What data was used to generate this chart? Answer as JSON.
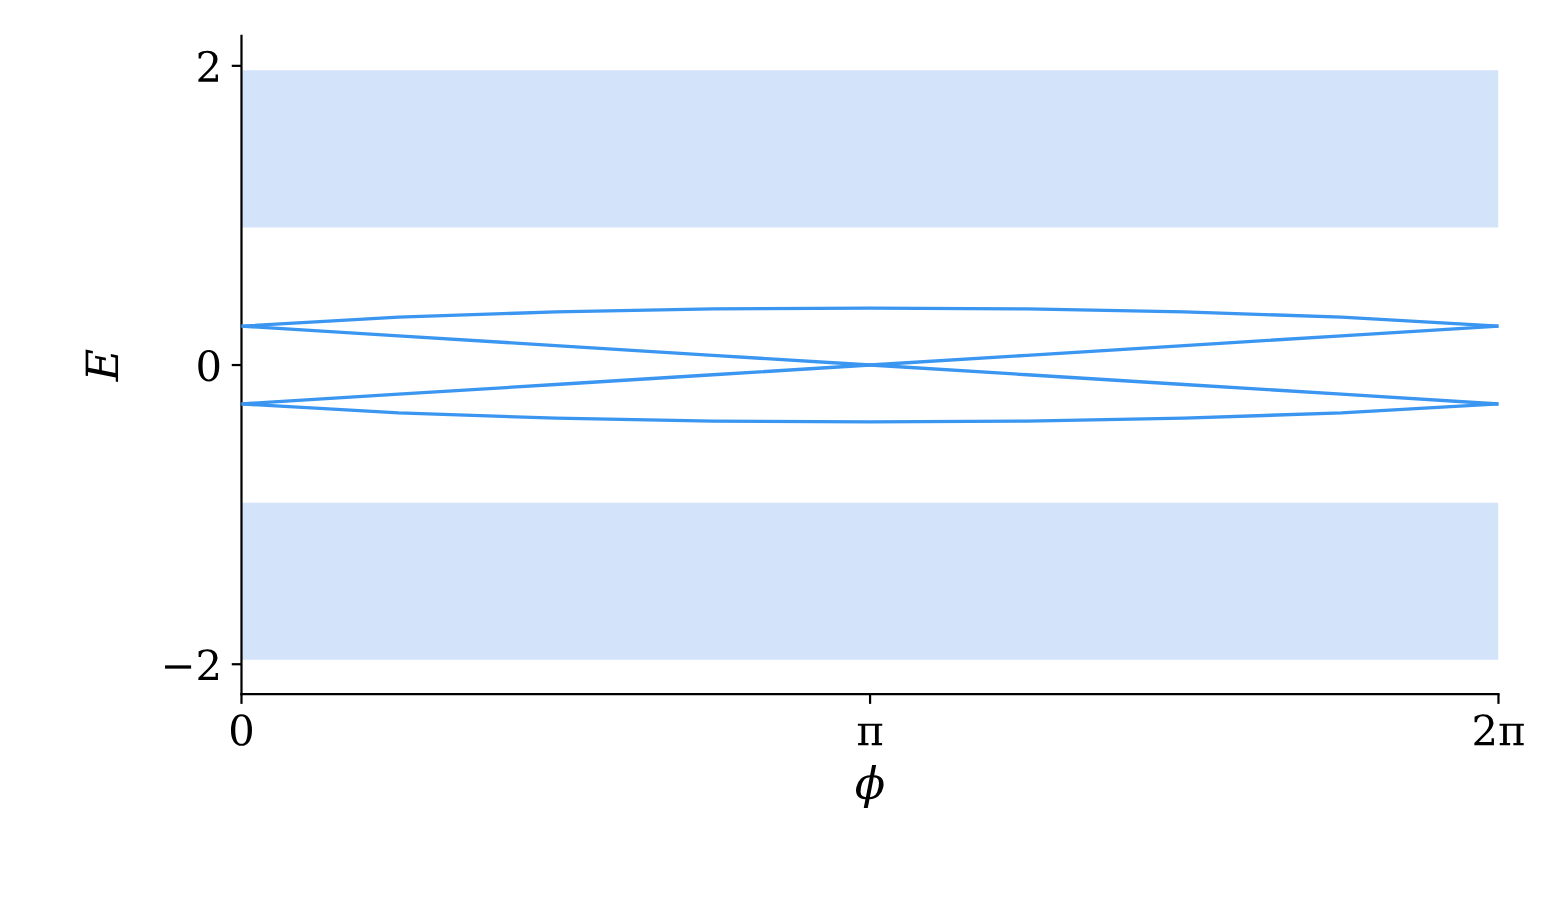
{
  "chart_data": {
    "type": "line",
    "xlabel": "ϕ",
    "ylabel": "E",
    "x": [
      0,
      0.785,
      1.571,
      2.356,
      3.142,
      3.927,
      4.712,
      5.498,
      6.283
    ],
    "series": [
      {
        "color": "#3a96f0",
        "values": [
          0.26,
          0.32,
          0.355,
          0.375,
          0.38,
          0.375,
          0.355,
          0.32,
          0.26
        ]
      },
      {
        "color": "#3a96f0",
        "values": [
          -0.26,
          -0.32,
          -0.355,
          -0.375,
          -0.38,
          -0.375,
          -0.355,
          -0.32,
          -0.26
        ]
      },
      {
        "color": "#3a96f0",
        "values": [
          0.26,
          0.195,
          0.13,
          0.065,
          0,
          -0.065,
          -0.13,
          -0.195,
          -0.26
        ]
      },
      {
        "color": "#3a96f0",
        "values": [
          -0.26,
          -0.195,
          -0.13,
          -0.065,
          0,
          0.065,
          0.13,
          0.195,
          0.26
        ]
      }
    ],
    "bands": [
      {
        "axis": "y",
        "from": 0.92,
        "to": 1.97,
        "color": "#d3e3fa"
      },
      {
        "axis": "y",
        "from": -1.97,
        "to": -0.92,
        "color": "#d3e3fa"
      }
    ],
    "xlim": [
      0,
      6.283
    ],
    "ylim": [
      -2.2,
      2.2
    ],
    "xticks": [
      0,
      {
        "value": 3.142,
        "label": "π"
      },
      {
        "value": 6.283,
        "label": "2π"
      }
    ],
    "yticks": [
      {
        "value": -2,
        "label": "−2"
      },
      0,
      2
    ],
    "grid": false,
    "legend": false,
    "marker": "none",
    "line_style": "solid"
  }
}
